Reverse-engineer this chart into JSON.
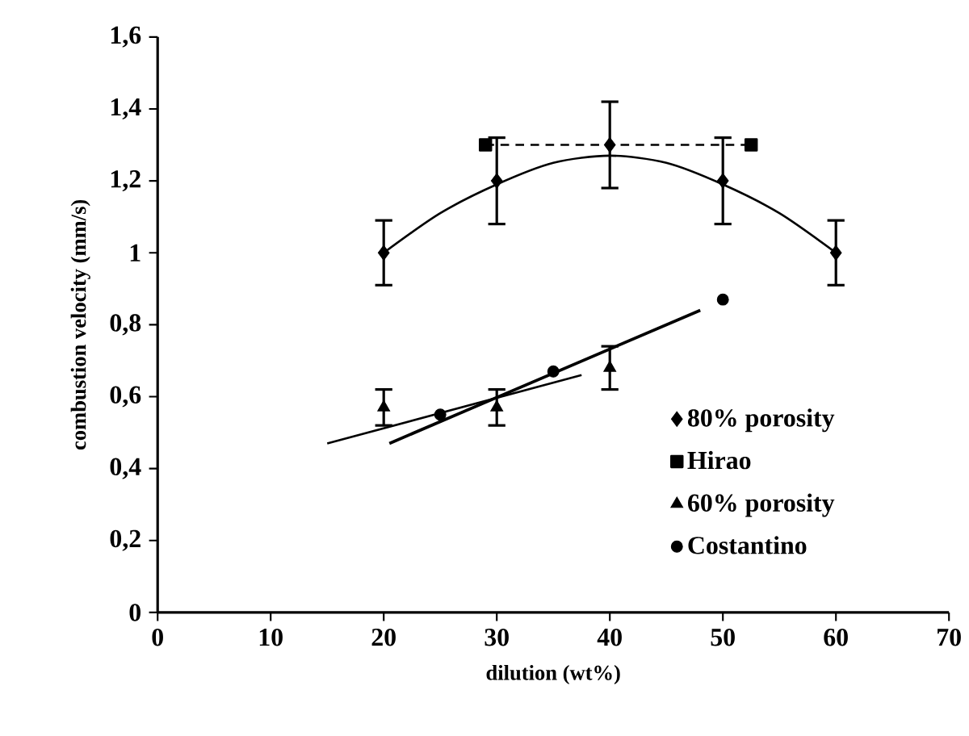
{
  "chart_data": {
    "type": "scatter",
    "xlabel": "dilution (wt%)",
    "ylabel": "combustion velocity (mm/s)",
    "xlim": [
      0,
      70
    ],
    "xticks": [
      0,
      10,
      20,
      30,
      40,
      50,
      60,
      70
    ],
    "ylim": [
      0,
      1.6
    ],
    "yticks": [
      0,
      {
        "value": 0.2,
        "label": "0,2"
      },
      {
        "value": 0.4,
        "label": "0,4"
      },
      {
        "value": 0.6,
        "label": "0,6"
      },
      {
        "value": 0.8,
        "label": "0,8"
      },
      1,
      {
        "value": 1.2,
        "label": "1,2"
      },
      {
        "value": 1.4,
        "label": "1,4"
      },
      {
        "value": 1.6,
        "label": "1,6"
      }
    ],
    "legend": "bottom right",
    "grid": false,
    "series": [
      {
        "name": "80% porosity",
        "color": "#000000",
        "marker": "diamond",
        "x": [
          20,
          30,
          40,
          50,
          60
        ],
        "values": [
          1.0,
          1.2,
          1.3,
          1.2,
          1.0
        ],
        "errors": [
          0.09,
          0.12,
          0.12,
          0.12,
          0.09
        ]
      },
      {
        "name": "Hirao",
        "color": "#000000",
        "type": "line",
        "marker": "square",
        "line_style": "dashed",
        "x": [
          29,
          52.5
        ],
        "values": [
          1.3,
          1.3
        ]
      },
      {
        "name": "60% porosity",
        "color": "#000000",
        "marker": "triangle",
        "x": [
          20,
          30,
          40
        ],
        "values": [
          0.57,
          0.57,
          0.68
        ],
        "errors": [
          0.05,
          0.05,
          0.06
        ]
      },
      {
        "name": "Costantino",
        "color": "#000000",
        "marker": "circle",
        "x": [
          25,
          35,
          50
        ],
        "values": [
          0.55,
          0.67,
          0.87
        ]
      },
      {
        "color": "#000000",
        "type": "line",
        "x": [
          20,
          25,
          30,
          35,
          40,
          45,
          50,
          55,
          60
        ],
        "values": [
          1.0,
          1.11,
          1.19,
          1.25,
          1.27,
          1.25,
          1.19,
          1.11,
          1.0
        ]
      },
      {
        "color": "#000000",
        "type": "line",
        "x": [
          15,
          37.5
        ],
        "values": [
          0.47,
          0.66
        ]
      },
      {
        "color": "#000000",
        "type": "line",
        "x": [
          20.5,
          48
        ],
        "values": [
          0.47,
          0.84
        ]
      }
    ]
  }
}
